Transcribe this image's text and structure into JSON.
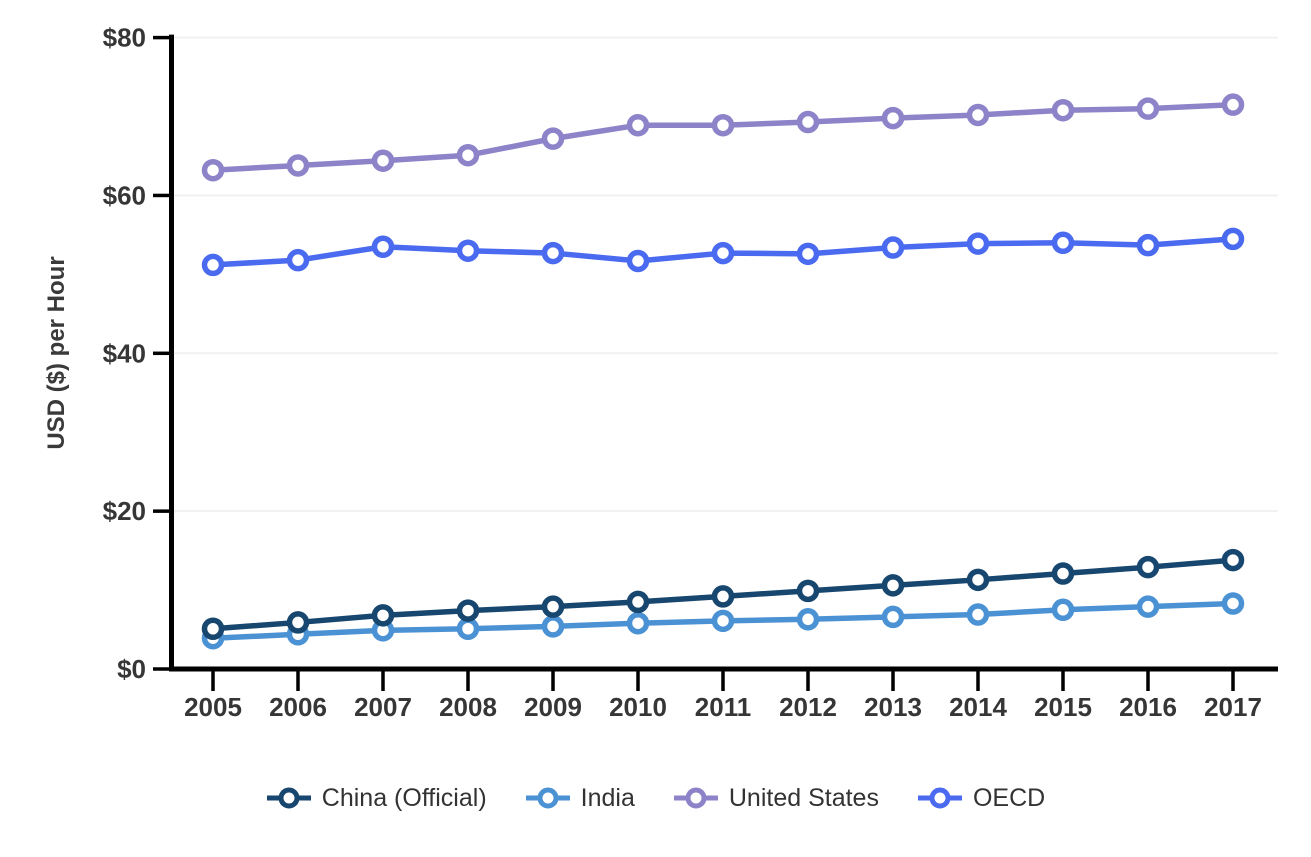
{
  "chart_data": {
    "type": "line",
    "x": [
      2005,
      2006,
      2007,
      2008,
      2009,
      2010,
      2011,
      2012,
      2013,
      2014,
      2015,
      2016,
      2017
    ],
    "xtick_labels": [
      "2005",
      "2006",
      "2007",
      "2008",
      "2009",
      "2010",
      "2011",
      "2012",
      "2013",
      "2014",
      "2015",
      "2016",
      "2017"
    ],
    "series": [
      {
        "name": "China (Official)",
        "color": "#17466e",
        "values": [
          5.1,
          5.9,
          6.8,
          7.4,
          7.9,
          8.5,
          9.2,
          9.9,
          10.6,
          11.3,
          12.1,
          12.9,
          13.8
        ]
      },
      {
        "name": "India",
        "color": "#4b92d4",
        "values": [
          3.9,
          4.4,
          4.9,
          5.1,
          5.4,
          5.8,
          6.1,
          6.3,
          6.6,
          6.9,
          7.5,
          7.9,
          8.3
        ]
      },
      {
        "name": "United States",
        "color": "#8c83c9",
        "values": [
          63.2,
          63.8,
          64.4,
          65.1,
          67.2,
          68.9,
          68.9,
          69.3,
          69.8,
          70.2,
          70.8,
          71.0,
          71.5
        ]
      },
      {
        "name": "OECD",
        "color": "#4a6af0",
        "values": [
          51.2,
          51.8,
          53.5,
          53.0,
          52.7,
          51.7,
          52.7,
          52.6,
          53.4,
          53.9,
          54.0,
          53.7,
          54.5
        ]
      }
    ],
    "title": "",
    "xlabel": "",
    "ylabel": "USD ($) per Hour",
    "ylim": [
      0,
      80
    ],
    "yticks": [
      0,
      20,
      40,
      60,
      80
    ],
    "ytick_labels": [
      "$0",
      "$20",
      "$40",
      "$60",
      "$80"
    ],
    "grid": true,
    "legend_position": "bottom"
  },
  "colors": {
    "axis": "#000000",
    "grid": "#f1f1f1",
    "tick_label": "#363636",
    "axis_title": "#3a3a3a",
    "legend_text": "#333333",
    "background": "#ffffff",
    "marker_fill": "#ffffff"
  }
}
